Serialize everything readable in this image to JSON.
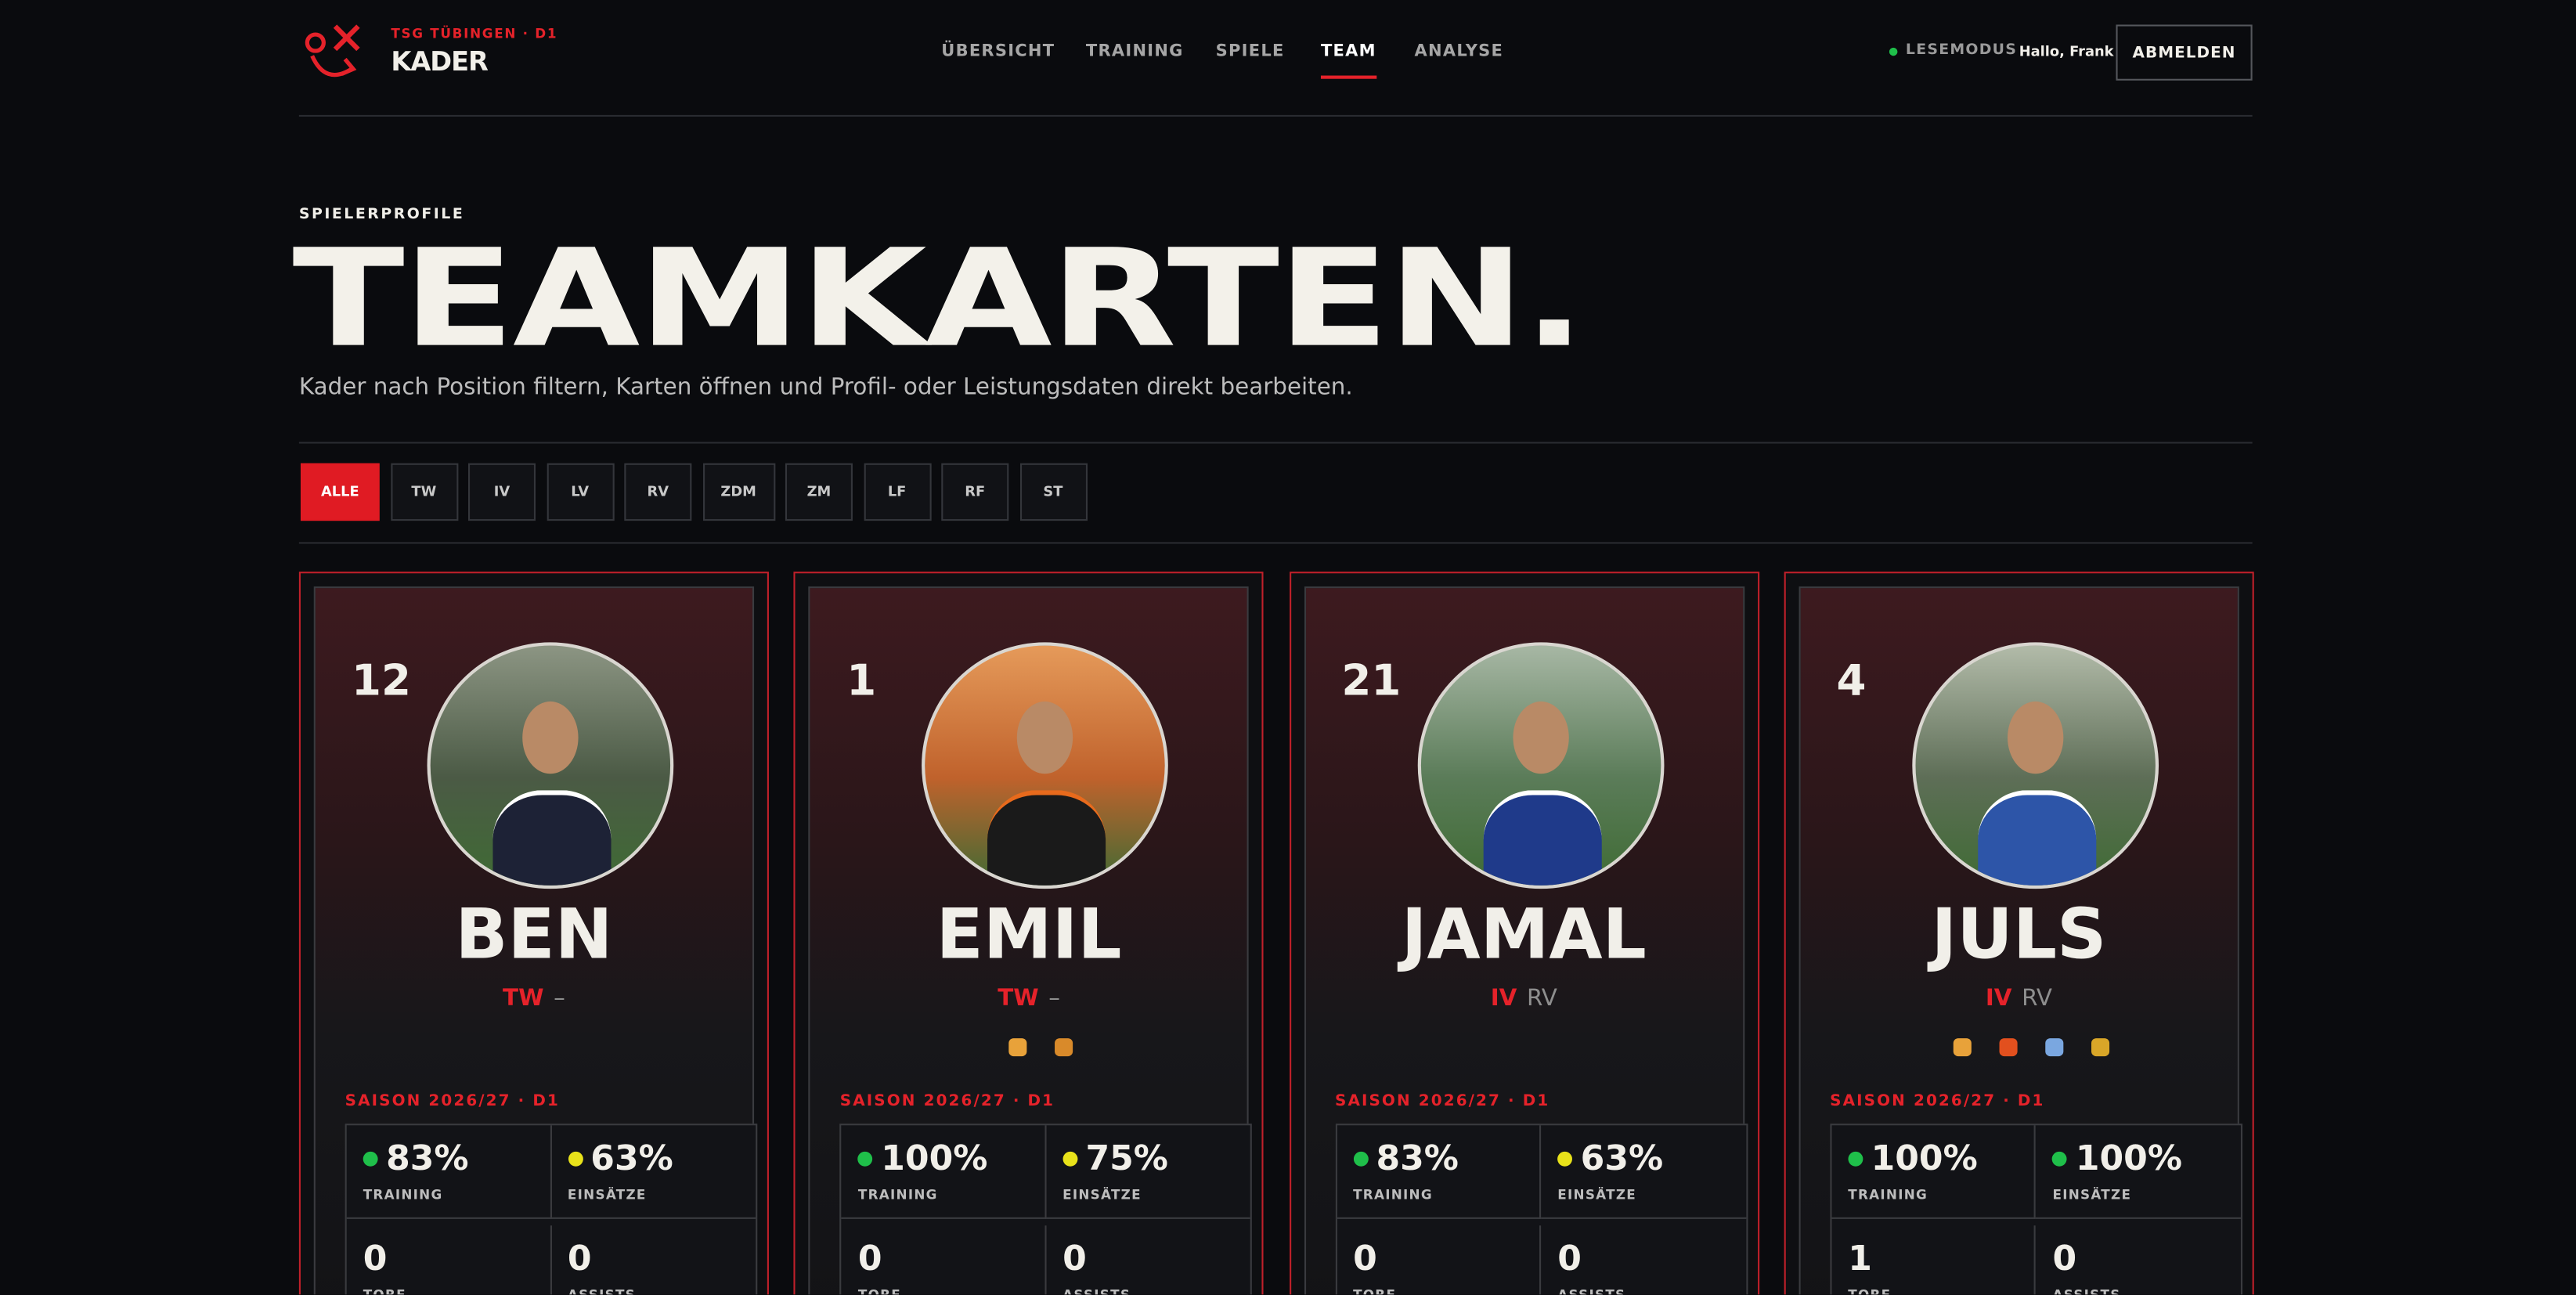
{
  "header": {
    "club": "TSG TÜBINGEN · D1",
    "title": "KADER",
    "nav": [
      {
        "label": "ÜBERSICHT",
        "active": false
      },
      {
        "label": "TRAINING",
        "active": false
      },
      {
        "label": "SPIELE",
        "active": false
      },
      {
        "label": "TEAM",
        "active": true
      },
      {
        "label": "ANALYSE",
        "active": false
      }
    ],
    "status": "LESEMODUS",
    "greeting": "Hallo, Frank",
    "logout": "ABMELDEN"
  },
  "hero": {
    "eyebrow": "SPIELERPROFILE",
    "title": "TEAMKARTEN.",
    "subtitle": "Kader nach Position filtern, Karten öffnen und Profil- oder Leistungsdaten direkt bearbeiten."
  },
  "filters": [
    {
      "label": "ALLE",
      "active": true
    },
    {
      "label": "TW",
      "active": false
    },
    {
      "label": "IV",
      "active": false
    },
    {
      "label": "LV",
      "active": false
    },
    {
      "label": "RV",
      "active": false
    },
    {
      "label": "ZDM",
      "active": false
    },
    {
      "label": "ZM",
      "active": false
    },
    {
      "label": "LF",
      "active": false
    },
    {
      "label": "RF",
      "active": false
    },
    {
      "label": "ST",
      "active": false
    }
  ],
  "players": [
    {
      "number": 12,
      "name": "BEN",
      "position": "TW",
      "secondary": "–",
      "season": "SAISON 2026/27 · D1",
      "stats": [
        {
          "value": "83%",
          "label": "TRAINING",
          "color": "#1fbf4a"
        },
        {
          "value": "63%",
          "label": "EINSÄTZE",
          "color": "#e8e21a"
        },
        {
          "value": "0",
          "label": "TORE"
        },
        {
          "value": "0",
          "label": "ASSISTS"
        }
      ]
    },
    {
      "number": 1,
      "name": "EMIL",
      "position": "TW",
      "secondary": "–",
      "season": "SAISON 2026/27 · D1",
      "stats": [
        {
          "value": "100%",
          "label": "TRAINING",
          "color": "#1fbf4a"
        },
        {
          "value": "75%",
          "label": "EINSÄTZE",
          "color": "#e8e21a"
        },
        {
          "value": "0",
          "label": "TORE"
        },
        {
          "value": "0",
          "label": "ASSISTS"
        }
      ]
    },
    {
      "number": 21,
      "name": "JAMAL",
      "position": "IV",
      "secondary": "RV",
      "season": "SAISON 2026/27 · D1",
      "stats": [
        {
          "value": "83%",
          "label": "TRAINING",
          "color": "#1fbf4a"
        },
        {
          "value": "63%",
          "label": "EINSÄTZE",
          "color": "#e8e21a"
        },
        {
          "value": "0",
          "label": "TORE"
        },
        {
          "value": "0",
          "label": "ASSISTS"
        }
      ]
    },
    {
      "number": 4,
      "name": "JULS",
      "position": "IV",
      "secondary": "RV",
      "season": "SAISON 2026/27 · D1",
      "stats": [
        {
          "value": "100%",
          "label": "TRAINING",
          "color": "#1fbf4a"
        },
        {
          "value": "100%",
          "label": "EINSÄTZE",
          "color": "#1fbf4a"
        },
        {
          "value": "1",
          "label": "TORE"
        },
        {
          "value": "0",
          "label": "ASSISTS"
        }
      ]
    }
  ]
}
